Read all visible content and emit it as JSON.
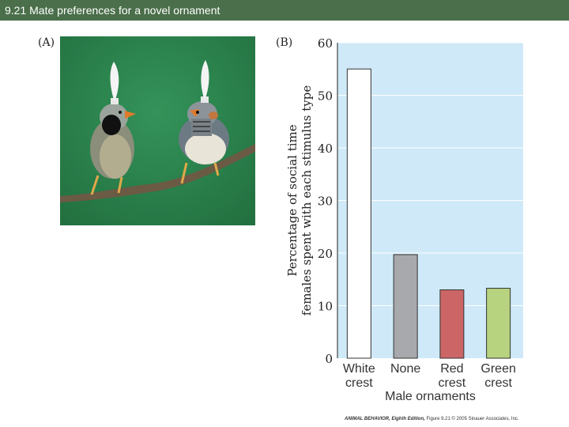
{
  "header": {
    "title": "9.21  Mate preferences for a novel ornament"
  },
  "panels": {
    "a_label": "(A)",
    "b_label": "(B)"
  },
  "credit": {
    "book": "ANIMAL BEHAVIOR, Eighth Edition,",
    "rest": " Figure 9.21   © 2005 Sinauer Associates, Inc."
  },
  "colors": {
    "header_bg": "#4a6f4a",
    "plot_bg": "#cfe9f8",
    "photo_bg": "#2e8a52"
  },
  "chart_data": {
    "type": "bar",
    "categories": [
      [
        "White",
        "crest"
      ],
      [
        "None",
        ""
      ],
      [
        "Red",
        "crest"
      ],
      [
        "Green",
        "crest"
      ]
    ],
    "values": [
      55,
      19.7,
      13,
      13.3
    ],
    "bar_colors": [
      "#ffffff",
      "#a7a9ac",
      "#cc6666",
      "#b7d37f"
    ],
    "xlabel": "Male ornaments",
    "ylabel": [
      "Percentage of social time",
      "females spent with each stimulus type"
    ],
    "ylim": [
      0,
      60
    ],
    "yticks": [
      0,
      10,
      20,
      30,
      40,
      50,
      60
    ],
    "grid": true
  }
}
